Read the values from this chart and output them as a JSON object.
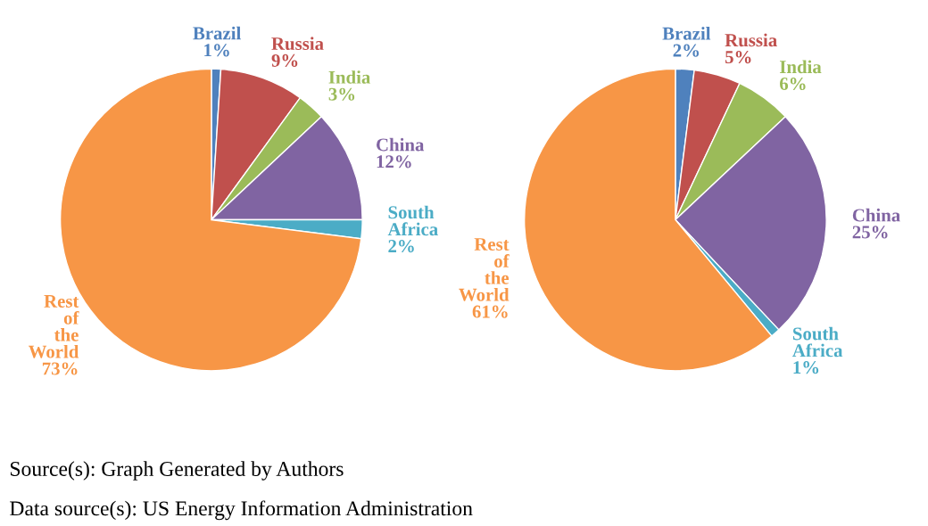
{
  "chart_data": [
    {
      "type": "pie",
      "categories": [
        "Brazil",
        "Russia",
        "India",
        "China",
        "South Africa",
        "Rest of the World"
      ],
      "values": [
        1,
        9,
        3,
        12,
        2,
        73
      ],
      "colors": [
        "#4f81bd",
        "#c0504d",
        "#9bbb59",
        "#8064a2",
        "#4bacc6",
        "#f79646"
      ],
      "value_labels": [
        "1%",
        "9%",
        "3%",
        "12%",
        "2%",
        "73%"
      ],
      "annotations": [
        "Source(s): Graph Generated by Authors",
        "Data source(s): US Energy Information Administration"
      ]
    },
    {
      "type": "pie",
      "categories": [
        "Brazil",
        "Russia",
        "India",
        "China",
        "South Africa",
        "Rest of the World"
      ],
      "values": [
        2,
        5,
        6,
        25,
        1,
        61
      ],
      "colors": [
        "#4f81bd",
        "#c0504d",
        "#9bbb59",
        "#8064a2",
        "#4bacc6",
        "#f79646"
      ],
      "value_labels": [
        "2%",
        "5%",
        "6%",
        "25%",
        "1%",
        "61%"
      ]
    }
  ]
}
